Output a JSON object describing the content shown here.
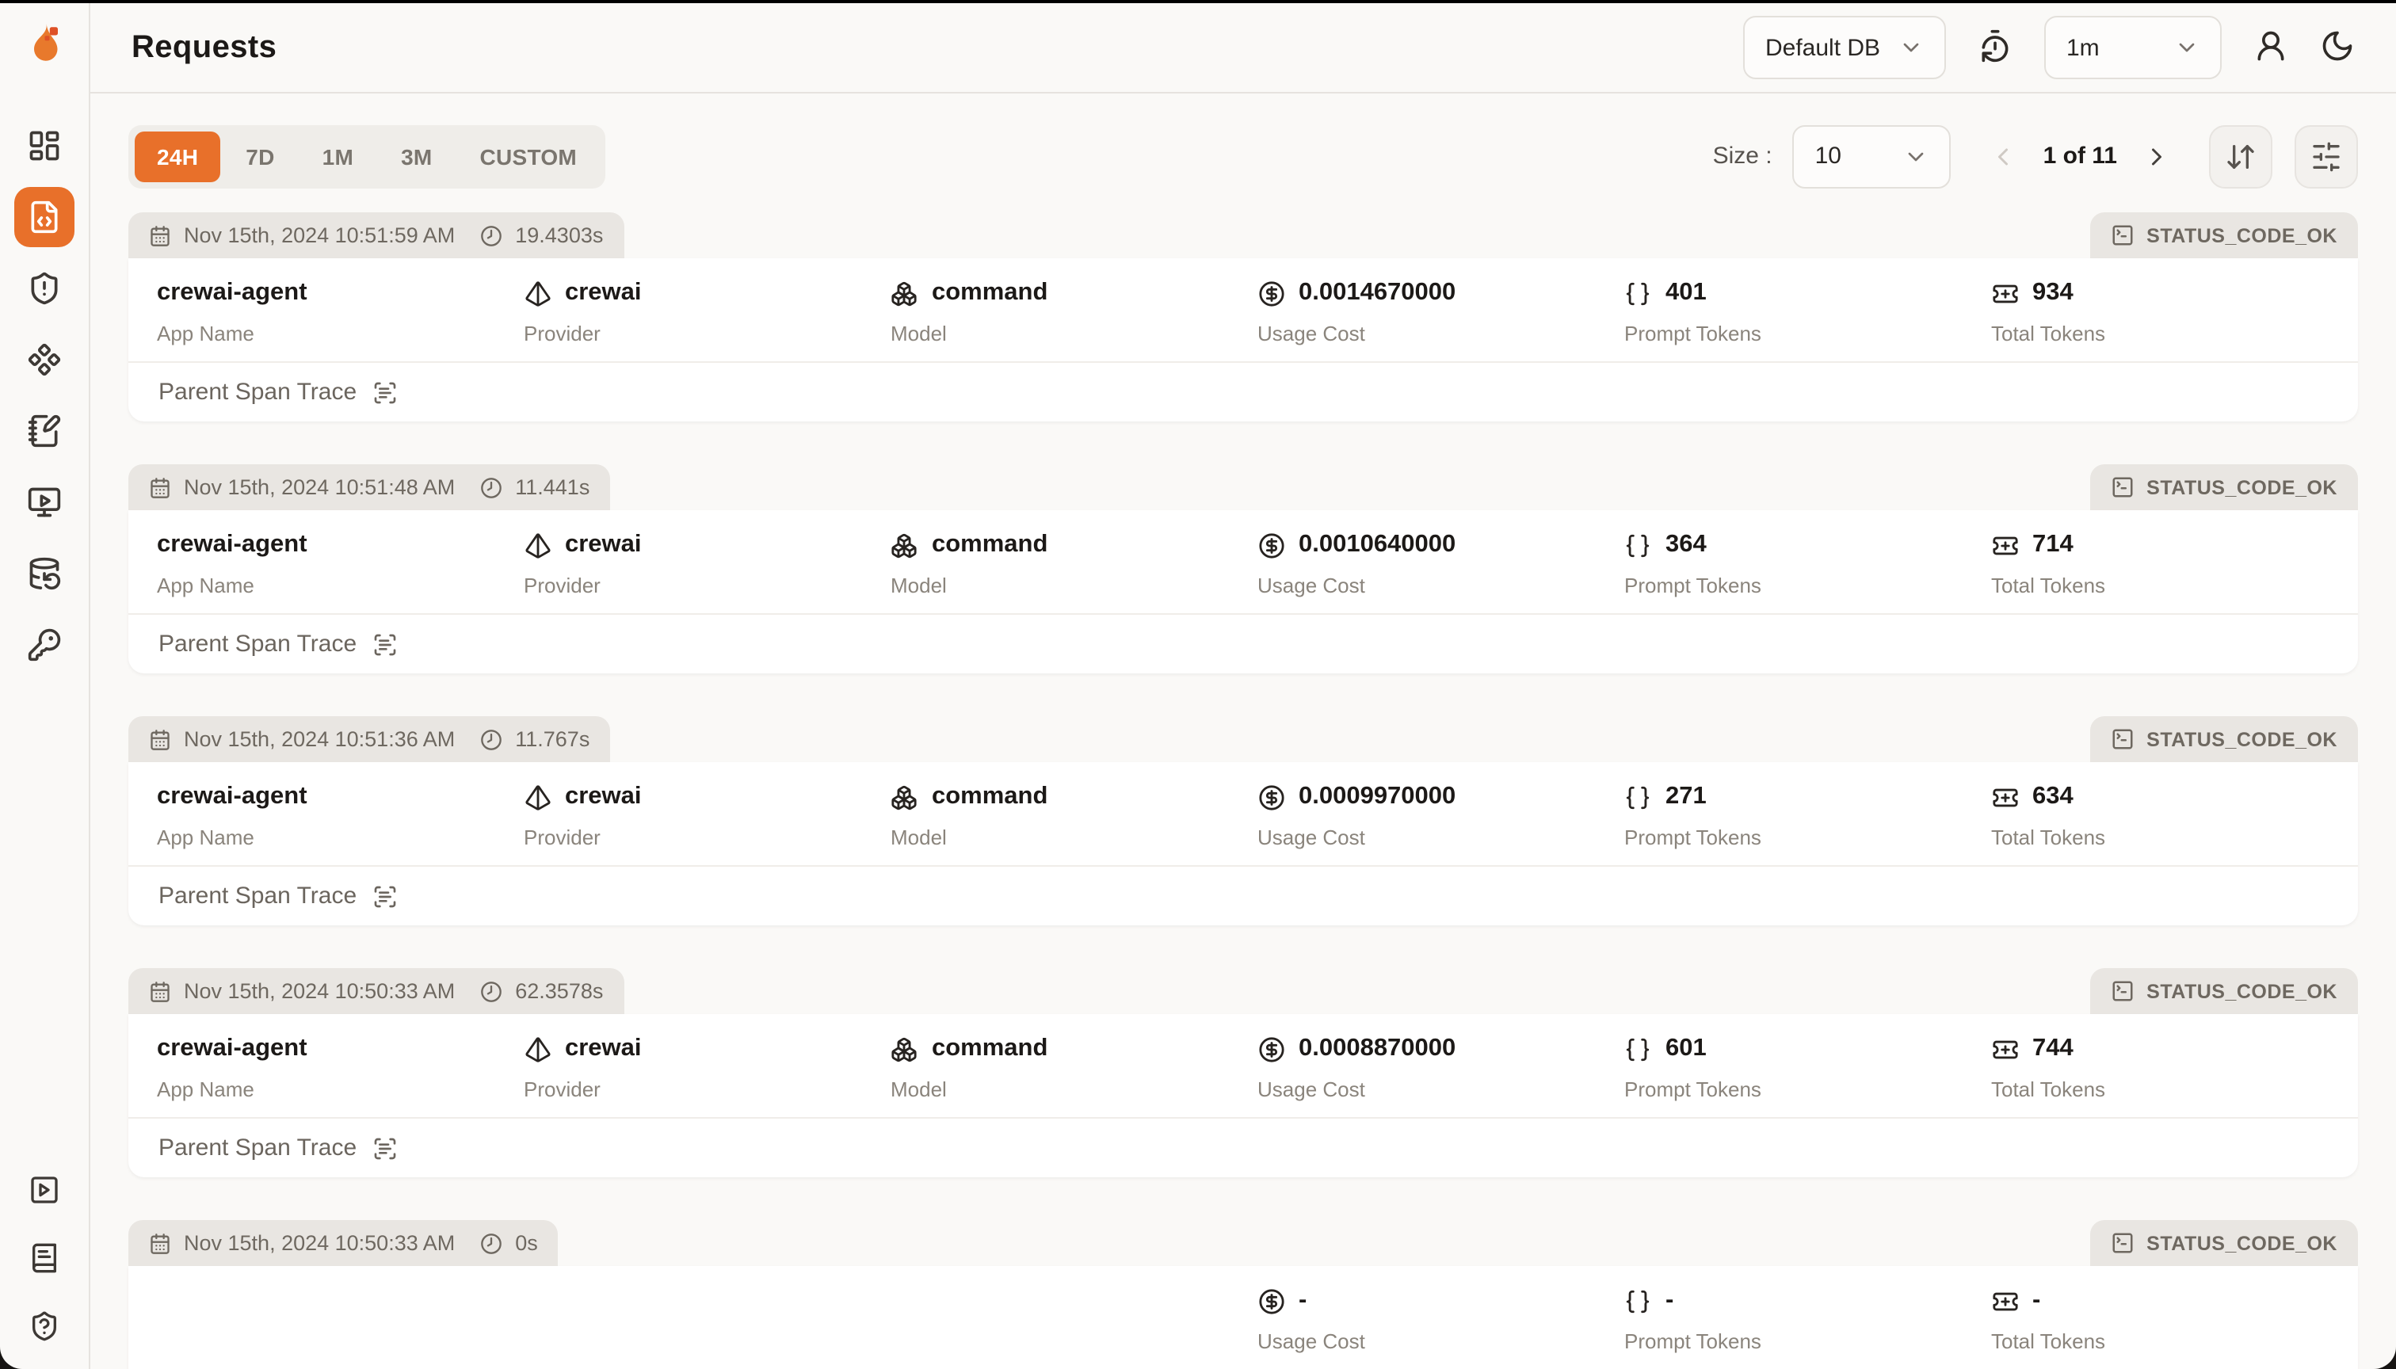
{
  "colors": {
    "accent": "#E8702A",
    "page_bg": "#FAF9F7",
    "card_bg": "#FFFFFF",
    "badge_bg": "#E9E6E2",
    "border": "#E7E4E0",
    "text_primary": "#1C1917",
    "text_muted": "#6E6860",
    "text_label": "#8A847C"
  },
  "sidebar": {
    "top_items": [
      {
        "name": "sidebar-item-dashboard",
        "icon": "layout-dashboard-icon",
        "active": false
      },
      {
        "name": "sidebar-item-requests",
        "icon": "file-code-icon",
        "active": true
      },
      {
        "name": "sidebar-item-exceptions",
        "icon": "shield-alert-icon",
        "active": false
      },
      {
        "name": "sidebar-item-vault",
        "icon": "component-icon",
        "active": false
      },
      {
        "name": "sidebar-item-prompt-hub",
        "icon": "notebook-pen-icon",
        "active": false
      },
      {
        "name": "sidebar-item-openground",
        "icon": "monitor-play-icon",
        "active": false
      },
      {
        "name": "sidebar-item-database-config",
        "icon": "database-backup-icon",
        "active": false
      },
      {
        "name": "sidebar-item-api-keys",
        "icon": "key-round-icon",
        "active": false
      }
    ],
    "bottom_items": [
      {
        "name": "sidebar-item-getting-started",
        "icon": "square-play-icon",
        "active": false
      },
      {
        "name": "sidebar-item-documentation",
        "icon": "book-text-icon",
        "active": false
      },
      {
        "name": "sidebar-item-support",
        "icon": "shield-question-icon",
        "active": false
      }
    ]
  },
  "header": {
    "title": "Requests",
    "database_selector": {
      "value": "Default DB"
    },
    "refresh_interval_selector": {
      "value": "1m"
    }
  },
  "toolbar": {
    "time_ranges": [
      {
        "label": "24H",
        "active": true
      },
      {
        "label": "7D",
        "active": false
      },
      {
        "label": "1M",
        "active": false
      },
      {
        "label": "3M",
        "active": false
      },
      {
        "label": "CUSTOM",
        "active": false
      }
    ],
    "size_label": "Size :",
    "size_selector": {
      "value": "10"
    },
    "pagination": {
      "current_page": "1 of 11"
    }
  },
  "card_labels": {
    "app_name": "App Name",
    "provider": "Provider",
    "model": "Model",
    "usage_cost": "Usage Cost",
    "prompt_tokens": "Prompt Tokens",
    "total_tokens": "Total Tokens",
    "parent_span": "Parent Span Trace"
  },
  "card_icons": {
    "date": "calendar-icon",
    "duration": "clock-icon",
    "provider": "pyramid-icon",
    "model": "boxes-icon",
    "usage_cost": "circle-dollar-sign-icon",
    "prompt_tokens": "braces-icon",
    "total_tokens": "ticket-plus-icon",
    "status": "square-terminal-icon",
    "parent_span": "scan-text-icon"
  },
  "requests": [
    {
      "date": "Nov 15th, 2024 10:51:59 AM",
      "duration": "19.4303s",
      "status": "STATUS_CODE_OK",
      "app_name": "crewai-agent",
      "provider": "crewai",
      "model": "command",
      "usage_cost": "0.0014670000",
      "prompt_tokens": "401",
      "total_tokens": "934",
      "has_details": true
    },
    {
      "date": "Nov 15th, 2024 10:51:48 AM",
      "duration": "11.441s",
      "status": "STATUS_CODE_OK",
      "app_name": "crewai-agent",
      "provider": "crewai",
      "model": "command",
      "usage_cost": "0.0010640000",
      "prompt_tokens": "364",
      "total_tokens": "714",
      "has_details": true
    },
    {
      "date": "Nov 15th, 2024 10:51:36 AM",
      "duration": "11.767s",
      "status": "STATUS_CODE_OK",
      "app_name": "crewai-agent",
      "provider": "crewai",
      "model": "command",
      "usage_cost": "0.0009970000",
      "prompt_tokens": "271",
      "total_tokens": "634",
      "has_details": true
    },
    {
      "date": "Nov 15th, 2024 10:50:33 AM",
      "duration": "62.3578s",
      "status": "STATUS_CODE_OK",
      "app_name": "crewai-agent",
      "provider": "crewai",
      "model": "command",
      "usage_cost": "0.0008870000",
      "prompt_tokens": "601",
      "total_tokens": "744",
      "has_details": true
    },
    {
      "date": "Nov 15th, 2024 10:50:33 AM",
      "duration": "0s",
      "status": "STATUS_CODE_OK",
      "app_name": "",
      "provider": "",
      "model": "",
      "usage_cost": "-",
      "prompt_tokens": "-",
      "total_tokens": "-",
      "has_details": false
    }
  ]
}
